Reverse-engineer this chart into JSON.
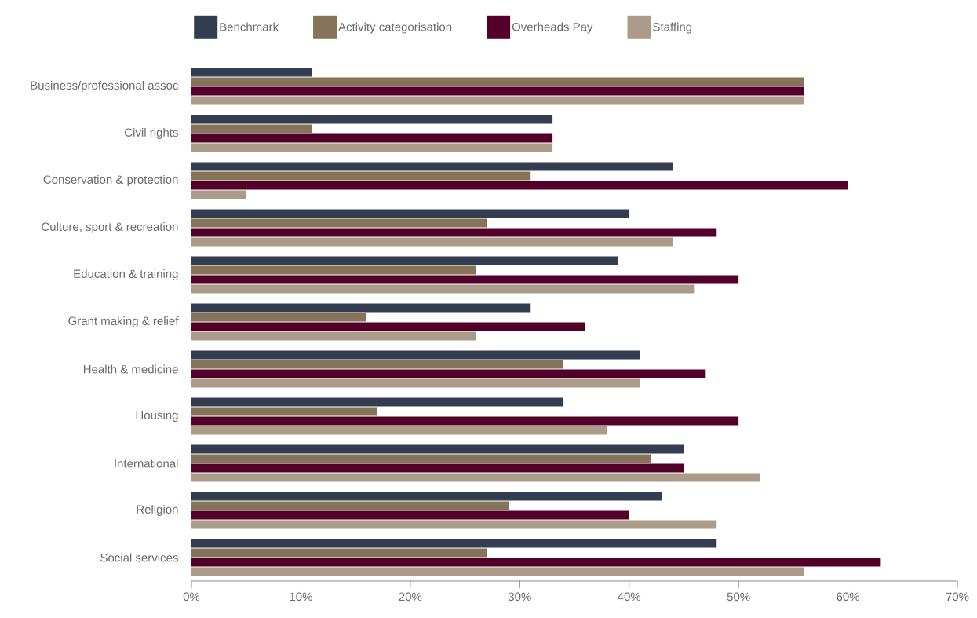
{
  "chart_data": {
    "type": "bar",
    "orientation": "horizontal",
    "legend": "top",
    "grid": false,
    "categories": [
      "Business/professional assoc",
      "Civil rights",
      "Conservation & protection",
      "Culture, sport & recreation",
      "Education & training",
      "Grant making & relief",
      "Health & medicine",
      "Housing",
      "International",
      "Religion",
      "Social services"
    ],
    "series": [
      {
        "name": "Benchmark",
        "color": "#323d4f",
        "values": [
          11,
          33,
          44,
          40,
          39,
          31,
          41,
          34,
          45,
          43,
          48
        ]
      },
      {
        "name": "Activity categorisation",
        "color": "#85745a",
        "values": [
          56,
          11,
          31,
          27,
          26,
          16,
          34,
          17,
          42,
          29,
          27
        ]
      },
      {
        "name": "Overheads Pay",
        "color": "#52002a",
        "values": [
          56,
          33,
          60,
          48,
          50,
          36,
          47,
          50,
          45,
          40,
          63
        ]
      },
      {
        "name": "Staffing",
        "color": "#ab9c89",
        "values": [
          56,
          33,
          5,
          44,
          46,
          26,
          41,
          38,
          52,
          48,
          56
        ]
      }
    ],
    "xlim": [
      0,
      70
    ],
    "xticks": [
      {
        "value": 0,
        "label": "0%"
      },
      {
        "value": 10,
        "label": "10%"
      },
      {
        "value": 20,
        "label": "20%"
      },
      {
        "value": 30,
        "label": "30%"
      },
      {
        "value": 40,
        "label": "40%"
      },
      {
        "value": 50,
        "label": "50%"
      },
      {
        "value": 60,
        "label": "60%"
      },
      {
        "value": 70,
        "label": "70%"
      }
    ]
  }
}
